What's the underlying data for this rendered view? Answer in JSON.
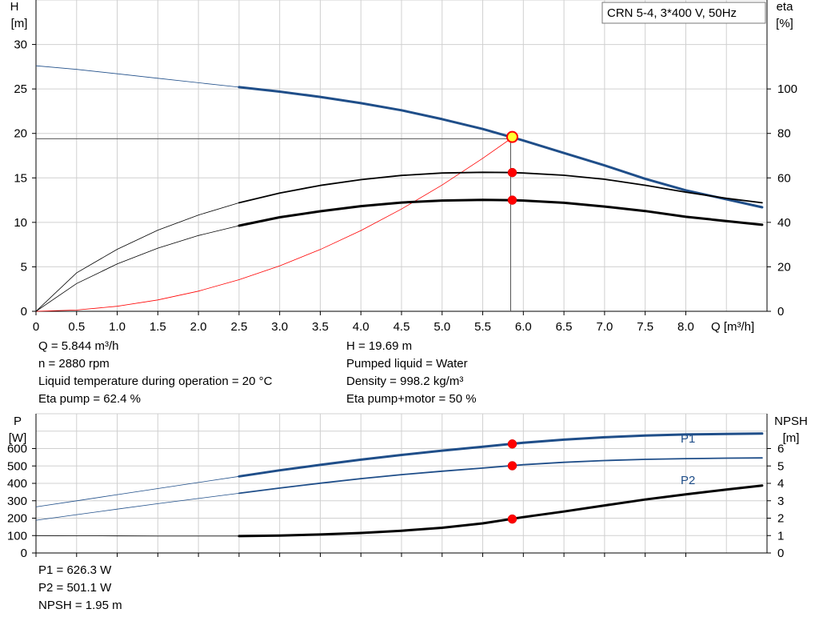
{
  "chart_data": [
    {
      "type": "line",
      "title": "CRN 5-4, 3*400 V, 50Hz",
      "xlabel": "Q [m³/h]",
      "ylabel_left": [
        "H",
        "[m]"
      ],
      "ylabel_right": [
        "eta",
        "[%]"
      ],
      "xlim": [
        0,
        9.0
      ],
      "ylim_left": [
        0,
        35
      ],
      "ylim_right": [
        0,
        140
      ],
      "x_ticks": [
        "0",
        "0.5",
        "1.0",
        "1.5",
        "2.0",
        "2.5",
        "3.0",
        "3.5",
        "4.0",
        "4.5",
        "5.0",
        "5.5",
        "6.0",
        "6.5",
        "7.0",
        "7.5",
        "8.0"
      ],
      "y_ticks_left": [
        "0",
        "5",
        "10",
        "15",
        "20",
        "25",
        "30"
      ],
      "y_ticks_right": [
        "0",
        "20",
        "40",
        "60",
        "80",
        "100"
      ],
      "grid": true,
      "duty_point": {
        "q": 5.844,
        "h": 19.69,
        "h_req": 19.4
      },
      "series": [
        {
          "axis": "left",
          "color": "#1f4e89",
          "x": [
            0,
            0.5,
            1.0,
            1.5,
            2.0,
            2.5,
            3.0,
            3.5,
            4.0,
            4.5,
            5.0,
            5.5,
            6.0,
            6.5,
            7.0,
            7.5,
            8.0,
            8.5,
            8.94
          ],
          "y": [
            27.6,
            27.2,
            26.7,
            26.2,
            25.7,
            25.2,
            24.7,
            24.1,
            23.4,
            22.6,
            21.6,
            20.5,
            19.2,
            17.8,
            16.4,
            14.9,
            13.6,
            12.6,
            11.7
          ]
        },
        {
          "axis": "right",
          "color": "#000000",
          "x": [
            0,
            0.5,
            1.0,
            1.5,
            2.0,
            2.5,
            3.0,
            3.5,
            4.0,
            4.5,
            5.0,
            5.5,
            5.844,
            6.0,
            6.5,
            7.0,
            7.5,
            8.0,
            8.5,
            8.94
          ],
          "y": [
            0,
            17.3,
            27.9,
            36.5,
            43.3,
            48.8,
            53.2,
            56.6,
            59.2,
            61.1,
            62.2,
            62.5,
            62.4,
            62.2,
            61.2,
            59.4,
            56.7,
            53.6,
            50.8,
            48.8
          ]
        },
        {
          "axis": "right",
          "color": "#000000",
          "x": [
            0,
            0.5,
            1.0,
            1.5,
            2.0,
            2.5,
            3.0,
            3.5,
            4.0,
            4.5,
            5.0,
            5.5,
            5.844,
            6.0,
            6.5,
            7.0,
            7.5,
            8.0,
            8.5,
            8.94
          ],
          "y": [
            0,
            12.5,
            21.3,
            28.4,
            34.1,
            38.5,
            42.3,
            45.0,
            47.3,
            48.9,
            49.8,
            50.1,
            50.0,
            49.8,
            48.8,
            47.1,
            45.1,
            42.5,
            40.6,
            38.9
          ]
        },
        {
          "axis": "left",
          "color": "#ff0000",
          "x": [
            0,
            0.5,
            1.0,
            1.5,
            2.0,
            2.5,
            3.0,
            3.5,
            4.0,
            4.5,
            5.0,
            5.5,
            5.844
          ],
          "y": [
            0,
            0.14,
            0.57,
            1.28,
            2.27,
            3.55,
            5.11,
            6.95,
            9.08,
            11.5,
            14.2,
            17.2,
            19.4
          ]
        }
      ],
      "info": [
        "Q = 5.844 m³/h",
        "n = 2880 rpm",
        "Liquid temperature during operation = 20 °C",
        "Eta pump = 62.4 %",
        "H = 19.69 m",
        "Pumped liquid = Water",
        "Density = 998.2 kg/m³",
        "Eta pump+motor = 50 %"
      ]
    },
    {
      "type": "line",
      "ylabel_left": [
        "P",
        "[W]"
      ],
      "ylabel_right": [
        "NPSH",
        "[m]"
      ],
      "xlim": [
        0,
        9.0
      ],
      "ylim_left": [
        0,
        800
      ],
      "ylim_right": [
        0,
        8
      ],
      "y_ticks_left": [
        "0",
        "100",
        "200",
        "300",
        "400",
        "500",
        "600"
      ],
      "y_ticks_right": [
        "0",
        "1",
        "2",
        "3",
        "4",
        "5",
        "6"
      ],
      "grid": true,
      "series": [
        {
          "name": "P1",
          "axis": "left",
          "color": "#1f4e89",
          "x": [
            0,
            0.5,
            1.0,
            1.5,
            2.0,
            2.5,
            3.0,
            3.5,
            4.0,
            4.5,
            5.0,
            5.5,
            5.844,
            6.0,
            6.5,
            7.0,
            7.5,
            8.0,
            8.5,
            8.94
          ],
          "y": [
            265,
            300,
            335,
            370,
            405,
            440,
            475,
            506,
            536,
            563,
            588,
            610,
            626.3,
            633,
            651,
            665,
            675,
            681,
            684,
            686
          ]
        },
        {
          "name": "P2",
          "axis": "left",
          "color": "#1f4e89",
          "x": [
            0,
            0.5,
            1.0,
            1.5,
            2.0,
            2.5,
            3.0,
            3.5,
            4.0,
            4.5,
            5.0,
            5.5,
            5.844,
            6.0,
            6.5,
            7.0,
            7.5,
            8.0,
            8.5,
            8.94
          ],
          "y": [
            188,
            220,
            252,
            283,
            313,
            343,
            373,
            401,
            427,
            450,
            470,
            488,
            501.1,
            507,
            521,
            531,
            538,
            542,
            545,
            546
          ]
        },
        {
          "axis": "right",
          "color": "#000000",
          "x": [
            0,
            0.5,
            1.0,
            1.5,
            2.0,
            2.5,
            3.0,
            3.5,
            4.0,
            4.5,
            5.0,
            5.5,
            5.844,
            6.0,
            6.5,
            7.0,
            7.5,
            8.0,
            8.5,
            8.94
          ],
          "y": [
            1.0,
            0.99,
            0.98,
            0.97,
            0.97,
            0.97,
            1.0,
            1.06,
            1.15,
            1.28,
            1.45,
            1.7,
            1.95,
            2.06,
            2.38,
            2.73,
            3.07,
            3.37,
            3.64,
            3.87
          ]
        }
      ],
      "info": [
        "P1 = 626.3 W",
        "P2 = 501.1 W",
        "NPSH = 1.95 m"
      ]
    }
  ]
}
